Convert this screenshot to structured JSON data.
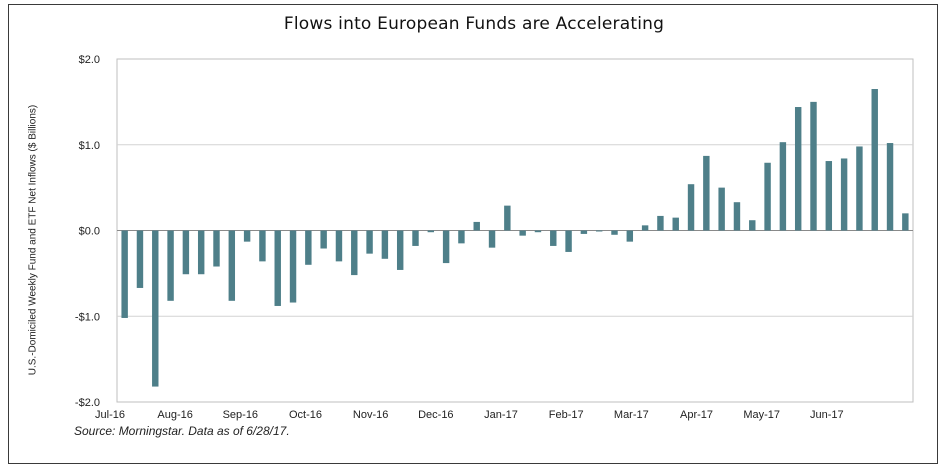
{
  "chart_data": {
    "type": "bar",
    "title": "Flows into European Funds are Accelerating",
    "ylabel": "U.S.-Domiciled Weekly Fund and ETF Net Inflows ($ Billions)",
    "xlabel": "",
    "source": "Source: Morningstar. Data as of 6/28/17.",
    "color": "#4e7f89",
    "grid": true,
    "ylim": [
      -2.0,
      2.0
    ],
    "yticks": [
      -2.0,
      -1.0,
      0.0,
      1.0,
      2.0
    ],
    "ytick_labels": [
      "-$2.0",
      "-$1.0",
      "$0.0",
      "$1.0",
      "$2.0"
    ],
    "x_tick_labels": [
      "Jul-16",
      "Aug-16",
      "Sep-16",
      "Oct-16",
      "Nov-16",
      "Dec-16",
      "Jan-17",
      "Feb-17",
      "Mar-17",
      "Apr-17",
      "May-17",
      "Jun-17"
    ],
    "series": [
      {
        "values": [
          -1.02,
          -0.67,
          -1.82,
          -0.82,
          -0.51,
          -0.51,
          -0.42,
          -0.82,
          -0.13,
          -0.36,
          -0.88,
          -0.84,
          -0.4,
          -0.21,
          -0.36,
          -0.52,
          -0.27,
          -0.33,
          -0.46,
          -0.18,
          -0.02,
          -0.38,
          -0.15,
          0.1,
          -0.2,
          0.29,
          -0.06,
          -0.02,
          -0.18,
          -0.25,
          -0.04,
          -0.01,
          -0.05,
          -0.13,
          0.06,
          0.17,
          0.15,
          0.54,
          0.87,
          0.5,
          0.33,
          0.12,
          0.79,
          1.03,
          1.44,
          1.5,
          0.81,
          0.84,
          0.98,
          1.65,
          1.02,
          0.2
        ]
      }
    ]
  }
}
